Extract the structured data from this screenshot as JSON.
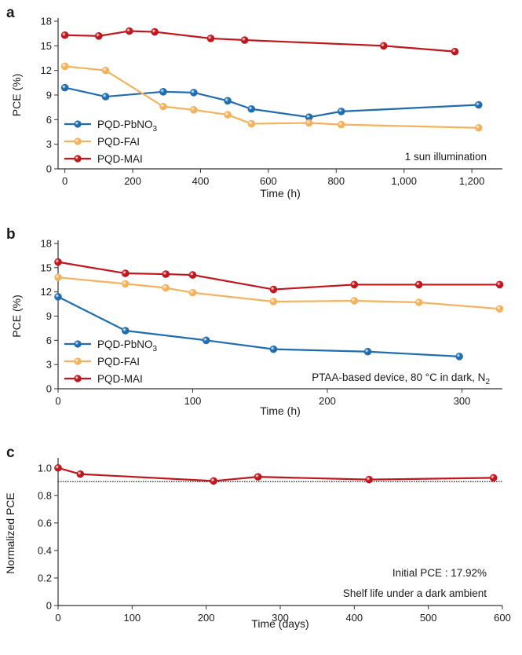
{
  "colors": {
    "blue": "#1f6db0",
    "orange": "#f5b25c",
    "red": "#c0161c",
    "axis": "#333333"
  },
  "chart_data": [
    {
      "type": "line",
      "panel": "a",
      "xlabel": "Time (h)",
      "ylabel": "PCE (%)",
      "xlim": [
        -20,
        1290
      ],
      "ylim": [
        0,
        18
      ],
      "xticks": [
        0,
        200,
        400,
        600,
        800,
        1000,
        1200
      ],
      "xtick_labels": [
        "0",
        "200",
        "400",
        "600",
        "800",
        "1,000",
        "1,200"
      ],
      "yticks": [
        0,
        3,
        6,
        9,
        12,
        15,
        18
      ],
      "ytick_labels": [
        "0",
        "3",
        "6",
        "9",
        "12",
        "15",
        "18"
      ],
      "legend_placement": "lower-left",
      "annotations": [
        "1 sun illumination"
      ],
      "series": [
        {
          "name": "PQD-PbNO",
          "name_sub": "3",
          "color": "blue",
          "x": [
            0,
            120,
            290,
            380,
            480,
            550,
            720,
            815,
            1220
          ],
          "y": [
            9.9,
            8.8,
            9.4,
            9.3,
            8.3,
            7.3,
            6.3,
            7.0,
            7.8
          ]
        },
        {
          "name": "PQD-FAI",
          "name_sub": "",
          "color": "orange",
          "x": [
            0,
            120,
            290,
            380,
            480,
            550,
            720,
            815,
            1220
          ],
          "y": [
            12.5,
            12.0,
            7.6,
            7.2,
            6.6,
            5.5,
            5.6,
            5.4,
            5.0
          ]
        },
        {
          "name": "PQD-MAI",
          "name_sub": "",
          "color": "red",
          "x": [
            0,
            100,
            190,
            265,
            430,
            530,
            940,
            1150
          ],
          "y": [
            16.3,
            16.2,
            16.8,
            16.7,
            15.9,
            15.7,
            15.0,
            14.3
          ]
        }
      ]
    },
    {
      "type": "line",
      "panel": "b",
      "xlabel": "Time (h)",
      "ylabel": "PCE (%)",
      "xlim": [
        0,
        330
      ],
      "ylim": [
        0,
        18
      ],
      "xticks": [
        0,
        100,
        200,
        300
      ],
      "xtick_labels": [
        "0",
        "100",
        "200",
        "300"
      ],
      "yticks": [
        0,
        3,
        6,
        9,
        12,
        15,
        18
      ],
      "ytick_labels": [
        "0",
        "3",
        "6",
        "9",
        "12",
        "15",
        "18"
      ],
      "legend_placement": "lower-left",
      "annotations": [
        "PTAA-based device, 80 °C in dark, N"
      ],
      "annotation_sub": "2",
      "series": [
        {
          "name": "PQD-PbNO",
          "name_sub": "3",
          "color": "blue",
          "x": [
            0,
            50,
            110,
            160,
            230,
            298
          ],
          "y": [
            11.4,
            7.2,
            6.0,
            4.9,
            4.6,
            4.0
          ]
        },
        {
          "name": "PQD-FAI",
          "name_sub": "",
          "color": "orange",
          "x": [
            0,
            50,
            80,
            100,
            160,
            220,
            268,
            328
          ],
          "y": [
            13.8,
            13.0,
            12.5,
            11.9,
            10.8,
            10.9,
            10.7,
            9.9
          ]
        },
        {
          "name": "PQD-MAI",
          "name_sub": "",
          "color": "red",
          "x": [
            0,
            50,
            80,
            100,
            160,
            220,
            268,
            328
          ],
          "y": [
            15.7,
            14.3,
            14.2,
            14.1,
            12.3,
            12.9,
            12.9,
            12.9
          ]
        }
      ]
    },
    {
      "type": "line",
      "panel": "c",
      "xlabel": "Time (days)",
      "ylabel": "Normalized PCE",
      "xlim": [
        0,
        600
      ],
      "ylim": [
        0,
        1.05
      ],
      "xticks": [
        0,
        100,
        200,
        300,
        400,
        500,
        600
      ],
      "xtick_labels": [
        "0",
        "100",
        "200",
        "300",
        "400",
        "500",
        "600"
      ],
      "yticks": [
        0,
        0.2,
        0.4,
        0.6,
        0.8,
        1.0
      ],
      "ytick_labels": [
        "0",
        "0.2",
        "0.4",
        "0.6",
        "0.8",
        "1.0"
      ],
      "reference_line_y": 0.9,
      "annotations": [
        "Initial PCE : 17.92%",
        "Shelf life under a dark ambient"
      ],
      "series": [
        {
          "name": "",
          "color": "red",
          "x": [
            0,
            30,
            210,
            270,
            420,
            588
          ],
          "y": [
            1.0,
            0.955,
            0.905,
            0.935,
            0.915,
            0.928
          ]
        }
      ]
    }
  ]
}
